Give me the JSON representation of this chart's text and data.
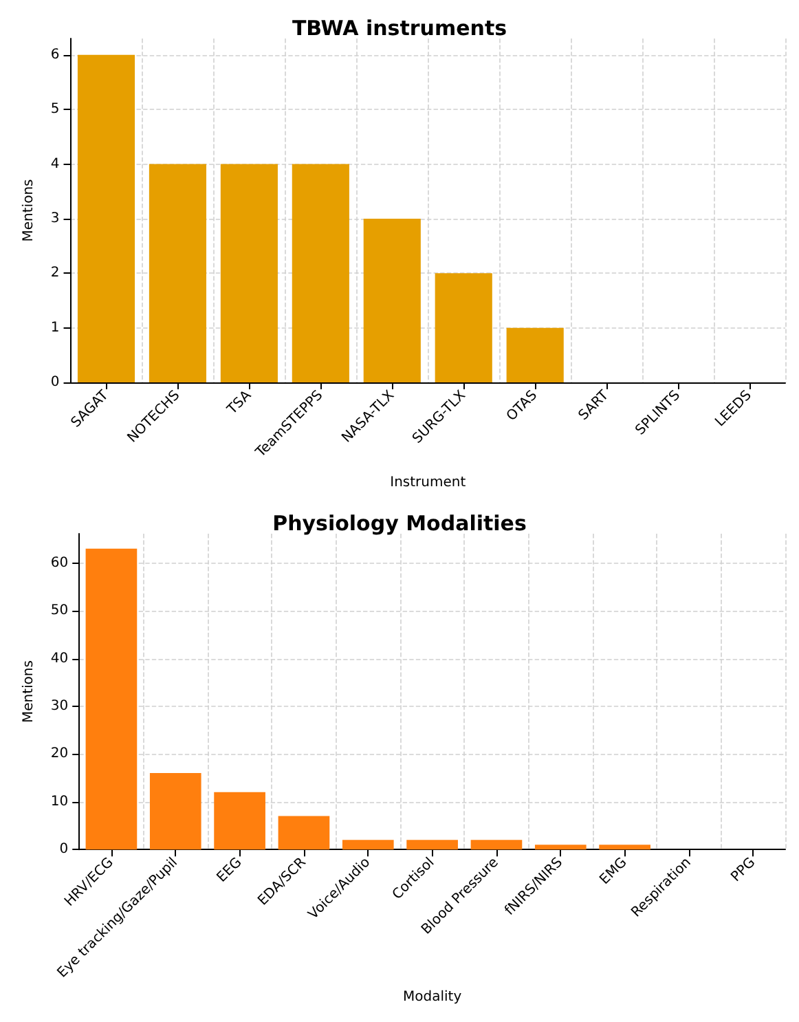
{
  "chart_data": [
    {
      "type": "bar",
      "title": "TBWA instruments",
      "xlabel": "Instrument",
      "ylabel": "Mentions",
      "categories": [
        "SAGAT",
        "NOTECHS",
        "TSA",
        "TeamSTEPPS",
        "NASA-TLX",
        "SURG-TLX",
        "OTAS",
        "SART",
        "SPLINTS",
        "LEEDS"
      ],
      "values": [
        6,
        4,
        4,
        4,
        3,
        2,
        1,
        0,
        0,
        0
      ],
      "color": "#e69f00",
      "ylim": [
        0,
        6.3
      ],
      "yticks": [
        0,
        1,
        2,
        3,
        4,
        5,
        6
      ],
      "grid": true
    },
    {
      "type": "bar",
      "title": "Physiology Modalities",
      "xlabel": "Modality",
      "ylabel": "Mentions",
      "categories": [
        "HRV/ECG",
        "Eye tracking/Gaze/Pupil",
        "EEG",
        "EDA/SCR",
        "Voice/Audio",
        "Cortisol",
        "Blood Pressure",
        "fNIRS/NIRS",
        "EMG",
        "Respiration",
        "PPG"
      ],
      "values": [
        63,
        16,
        12,
        7,
        2,
        2,
        2,
        1,
        1,
        0,
        0
      ],
      "color": "#ff7f0e",
      "ylim": [
        0,
        66.15
      ],
      "yticks": [
        0,
        10,
        20,
        30,
        40,
        50,
        60
      ],
      "grid": true
    }
  ]
}
